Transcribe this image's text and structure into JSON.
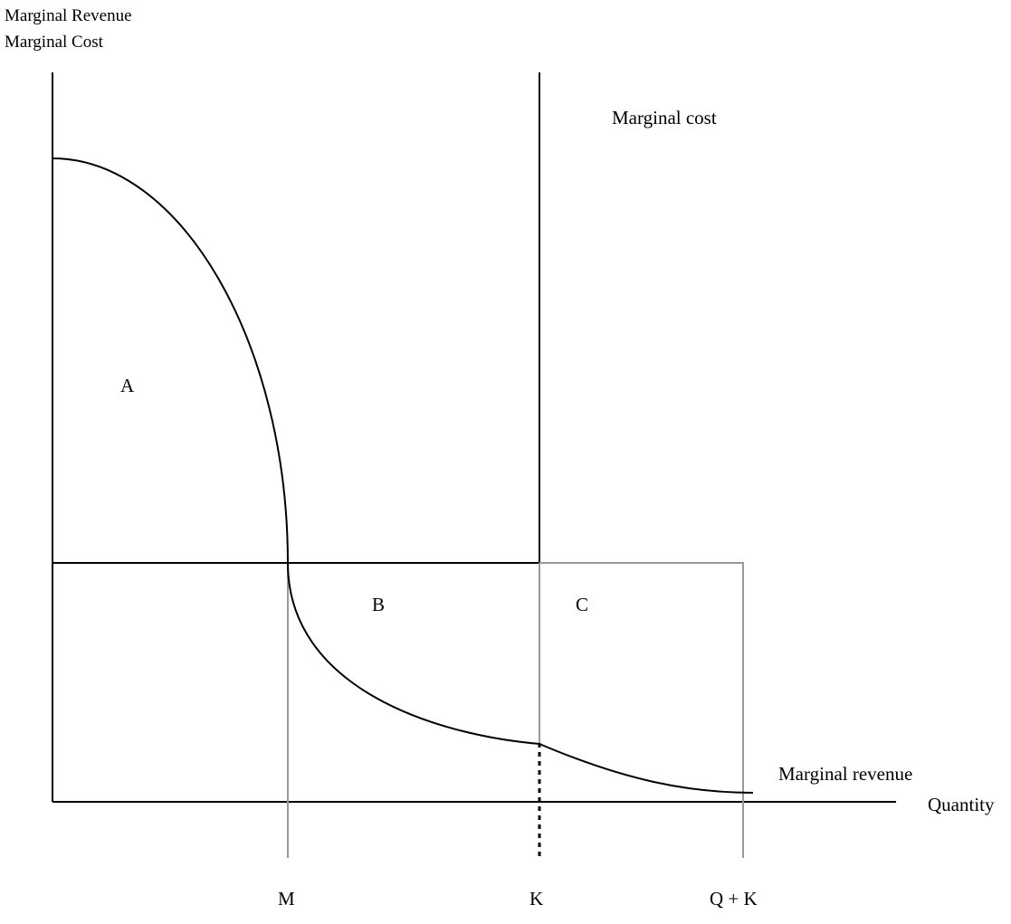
{
  "y_axis_title": [
    "Marginal Revenue",
    "Marginal Cost"
  ],
  "x_axis_title": "Quantity",
  "curves": {
    "marginal_cost": "Marginal cost",
    "marginal_revenue": "Marginal revenue"
  },
  "regions": {
    "a": "A",
    "b": "B",
    "c": "C"
  },
  "ticks": {
    "m": "M",
    "k": "K",
    "q_plus_k": "Q + K"
  },
  "colors": {
    "ink": "#000000",
    "guide": "#999999"
  }
}
